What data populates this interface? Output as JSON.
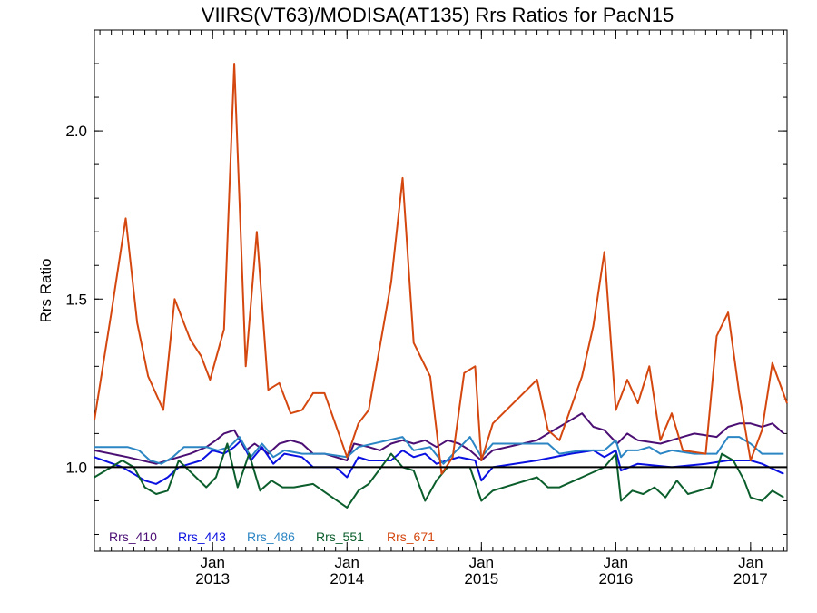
{
  "chart_data": {
    "type": "line",
    "title": "VIIRS(VT63)/MODISA(AT135)  Rrs Ratios for PacN15",
    "ylabel": "Rrs Ratio",
    "xlabel": "",
    "ylim": [
      0.75,
      2.3
    ],
    "xlim": [
      "2012-02-15",
      "2017-04-10"
    ],
    "yticks": [
      "1.0",
      "1.5",
      "2.0"
    ],
    "xticks": [
      {
        "month": "Jan",
        "year": "2013",
        "date": "2013-01-01"
      },
      {
        "month": "Jan",
        "year": "2014",
        "date": "2014-01-01"
      },
      {
        "month": "Jan",
        "year": "2015",
        "date": "2015-01-01"
      },
      {
        "month": "Jan",
        "year": "2016",
        "date": "2016-01-01"
      },
      {
        "month": "Jan",
        "year": "2017",
        "date": "2017-01-01"
      }
    ],
    "reference_line": 1.0,
    "legend_position": "bottom-left",
    "grid": false,
    "series": [
      {
        "name": "Rrs_410",
        "color": "#4b0f74",
        "points": [
          [
            "2012-02-15",
            1.05
          ],
          [
            "2012-05-15",
            1.03
          ],
          [
            "2012-08-01",
            1.01
          ],
          [
            "2012-10-01",
            1.03
          ],
          [
            "2012-11-01",
            1.04
          ],
          [
            "2012-12-15",
            1.06
          ],
          [
            "2013-01-10",
            1.08
          ],
          [
            "2013-02-01",
            1.1
          ],
          [
            "2013-03-01",
            1.11
          ],
          [
            "2013-04-01",
            1.05
          ],
          [
            "2013-04-25",
            1.07
          ],
          [
            "2013-06-01",
            1.04
          ],
          [
            "2013-07-01",
            1.07
          ],
          [
            "2013-08-01",
            1.08
          ],
          [
            "2013-09-01",
            1.07
          ],
          [
            "2013-10-01",
            1.04
          ],
          [
            "2013-11-01",
            1.04
          ],
          [
            "2014-01-01",
            1.02
          ],
          [
            "2014-01-20",
            1.07
          ],
          [
            "2014-03-01",
            1.06
          ],
          [
            "2014-04-01",
            1.05
          ],
          [
            "2014-05-01",
            1.07
          ],
          [
            "2014-06-01",
            1.08
          ],
          [
            "2014-07-01",
            1.07
          ],
          [
            "2014-08-01",
            1.08
          ],
          [
            "2014-09-01",
            1.06
          ],
          [
            "2014-10-01",
            1.08
          ],
          [
            "2014-11-01",
            1.07
          ],
          [
            "2014-12-01",
            1.05
          ],
          [
            "2015-01-01",
            1.02
          ],
          [
            "2015-02-01",
            1.05
          ],
          [
            "2015-06-01",
            1.08
          ],
          [
            "2015-07-01",
            1.1
          ],
          [
            "2015-08-01",
            1.12
          ],
          [
            "2015-10-01",
            1.16
          ],
          [
            "2015-11-01",
            1.12
          ],
          [
            "2015-12-01",
            1.11
          ],
          [
            "2016-01-05",
            1.07
          ],
          [
            "2016-02-01",
            1.1
          ],
          [
            "2016-03-01",
            1.08
          ],
          [
            "2016-05-01",
            1.07
          ],
          [
            "2016-07-01",
            1.09
          ],
          [
            "2016-08-01",
            1.1
          ],
          [
            "2016-10-01",
            1.09
          ],
          [
            "2016-11-01",
            1.12
          ],
          [
            "2016-12-01",
            1.13
          ],
          [
            "2017-01-01",
            1.13
          ],
          [
            "2017-02-01",
            1.12
          ],
          [
            "2017-03-01",
            1.13
          ],
          [
            "2017-04-01",
            1.1
          ]
        ]
      },
      {
        "name": "Rrs_443",
        "color": "#0a10e0",
        "points": [
          [
            "2012-02-15",
            1.03
          ],
          [
            "2012-05-01",
            1.0
          ],
          [
            "2012-06-01",
            0.98
          ],
          [
            "2012-07-01",
            0.96
          ],
          [
            "2012-08-01",
            0.95
          ],
          [
            "2012-09-01",
            0.97
          ],
          [
            "2012-10-01",
            1.0
          ],
          [
            "2012-12-01",
            1.02
          ],
          [
            "2013-01-01",
            1.05
          ],
          [
            "2013-02-01",
            1.04
          ],
          [
            "2013-03-01",
            1.06
          ],
          [
            "2013-03-20",
            1.08
          ],
          [
            "2013-04-15",
            1.02
          ],
          [
            "2013-05-15",
            1.06
          ],
          [
            "2013-06-15",
            1.01
          ],
          [
            "2013-07-15",
            1.04
          ],
          [
            "2013-09-01",
            1.03
          ],
          [
            "2013-10-01",
            1.0
          ],
          [
            "2013-12-01",
            1.0
          ],
          [
            "2014-01-01",
            0.97
          ],
          [
            "2014-02-01",
            1.03
          ],
          [
            "2014-03-01",
            1.02
          ],
          [
            "2014-05-01",
            1.02
          ],
          [
            "2014-06-01",
            1.05
          ],
          [
            "2014-07-01",
            1.03
          ],
          [
            "2014-08-01",
            1.04
          ],
          [
            "2014-09-01",
            1.01
          ],
          [
            "2014-10-01",
            1.02
          ],
          [
            "2014-11-01",
            1.03
          ],
          [
            "2014-12-15",
            1.02
          ],
          [
            "2015-01-01",
            0.96
          ],
          [
            "2015-02-01",
            1.0
          ],
          [
            "2015-06-01",
            1.02
          ],
          [
            "2015-09-01",
            1.04
          ],
          [
            "2015-11-01",
            1.05
          ],
          [
            "2015-12-01",
            1.03
          ],
          [
            "2016-01-01",
            1.05
          ],
          [
            "2016-01-15",
            0.99
          ],
          [
            "2016-03-01",
            1.01
          ],
          [
            "2016-06-01",
            1.0
          ],
          [
            "2016-09-01",
            1.01
          ],
          [
            "2016-11-01",
            1.02
          ],
          [
            "2017-01-01",
            1.02
          ],
          [
            "2017-02-01",
            1.01
          ],
          [
            "2017-04-01",
            0.98
          ]
        ]
      },
      {
        "name": "Rrs_486",
        "color": "#2c86c4",
        "points": [
          [
            "2012-02-15",
            1.06
          ],
          [
            "2012-05-15",
            1.06
          ],
          [
            "2012-06-15",
            1.05
          ],
          [
            "2012-07-15",
            1.02
          ],
          [
            "2012-08-15",
            1.01
          ],
          [
            "2012-09-15",
            1.03
          ],
          [
            "2012-10-15",
            1.06
          ],
          [
            "2012-12-15",
            1.06
          ],
          [
            "2013-01-15",
            1.05
          ],
          [
            "2013-02-15",
            1.06
          ],
          [
            "2013-03-15",
            1.09
          ],
          [
            "2013-04-15",
            1.03
          ],
          [
            "2013-05-15",
            1.07
          ],
          [
            "2013-06-15",
            1.03
          ],
          [
            "2013-07-15",
            1.05
          ],
          [
            "2013-09-01",
            1.04
          ],
          [
            "2013-11-01",
            1.04
          ],
          [
            "2014-01-01",
            1.03
          ],
          [
            "2014-02-01",
            1.06
          ],
          [
            "2014-06-01",
            1.09
          ],
          [
            "2014-07-01",
            1.05
          ],
          [
            "2014-08-15",
            1.06
          ],
          [
            "2014-09-20",
            1.01
          ],
          [
            "2014-12-01",
            1.09
          ],
          [
            "2015-01-01",
            1.03
          ],
          [
            "2015-02-01",
            1.07
          ],
          [
            "2015-07-01",
            1.07
          ],
          [
            "2015-08-01",
            1.04
          ],
          [
            "2015-10-01",
            1.05
          ],
          [
            "2015-12-01",
            1.05
          ],
          [
            "2016-01-01",
            1.08
          ],
          [
            "2016-01-15",
            1.03
          ],
          [
            "2016-02-01",
            1.05
          ],
          [
            "2016-03-01",
            1.05
          ],
          [
            "2016-04-01",
            1.06
          ],
          [
            "2016-05-01",
            1.04
          ],
          [
            "2016-06-01",
            1.05
          ],
          [
            "2016-08-01",
            1.04
          ],
          [
            "2016-10-01",
            1.04
          ],
          [
            "2016-11-01",
            1.09
          ],
          [
            "2016-12-01",
            1.09
          ],
          [
            "2017-01-01",
            1.07
          ],
          [
            "2017-02-01",
            1.04
          ],
          [
            "2017-04-01",
            1.04
          ]
        ]
      },
      {
        "name": "Rrs_551",
        "color": "#0b5e2c",
        "points": [
          [
            "2012-02-15",
            0.97
          ],
          [
            "2012-05-01",
            1.02
          ],
          [
            "2012-06-01",
            1.0
          ],
          [
            "2012-07-01",
            0.94
          ],
          [
            "2012-08-01",
            0.92
          ],
          [
            "2012-09-01",
            0.93
          ],
          [
            "2012-10-01",
            1.02
          ],
          [
            "2012-12-15",
            0.94
          ],
          [
            "2013-01-10",
            0.97
          ],
          [
            "2013-02-10",
            1.07
          ],
          [
            "2013-03-10",
            0.94
          ],
          [
            "2013-04-10",
            1.04
          ],
          [
            "2013-05-10",
            0.93
          ],
          [
            "2013-06-10",
            0.96
          ],
          [
            "2013-07-10",
            0.94
          ],
          [
            "2013-08-10",
            0.94
          ],
          [
            "2013-10-01",
            0.95
          ],
          [
            "2014-01-01",
            0.88
          ],
          [
            "2014-02-01",
            0.93
          ],
          [
            "2014-03-01",
            0.95
          ],
          [
            "2014-05-01",
            1.04
          ],
          [
            "2014-06-01",
            1.0
          ],
          [
            "2014-07-01",
            0.99
          ],
          [
            "2014-08-01",
            0.9
          ],
          [
            "2014-09-01",
            0.96
          ],
          [
            "2014-10-01",
            1.0
          ],
          [
            "2014-12-01",
            1.0
          ],
          [
            "2015-01-01",
            0.9
          ],
          [
            "2015-02-01",
            0.93
          ],
          [
            "2015-06-01",
            0.97
          ],
          [
            "2015-07-01",
            0.94
          ],
          [
            "2015-08-01",
            0.94
          ],
          [
            "2015-10-01",
            0.97
          ],
          [
            "2015-12-01",
            1.0
          ],
          [
            "2016-01-01",
            1.04
          ],
          [
            "2016-01-15",
            0.9
          ],
          [
            "2016-02-15",
            0.93
          ],
          [
            "2016-03-15",
            0.92
          ],
          [
            "2016-04-15",
            0.94
          ],
          [
            "2016-05-15",
            0.91
          ],
          [
            "2016-06-15",
            0.96
          ],
          [
            "2016-07-15",
            0.92
          ],
          [
            "2016-08-15",
            0.93
          ],
          [
            "2016-09-15",
            0.94
          ],
          [
            "2016-10-15",
            1.04
          ],
          [
            "2016-11-15",
            1.02
          ],
          [
            "2016-12-15",
            0.96
          ],
          [
            "2017-01-01",
            0.91
          ],
          [
            "2017-02-01",
            0.9
          ],
          [
            "2017-03-01",
            0.93
          ],
          [
            "2017-04-01",
            0.91
          ]
        ]
      },
      {
        "name": "Rrs_671",
        "color": "#d4470f",
        "points": [
          [
            "2012-02-15",
            1.14
          ],
          [
            "2012-04-01",
            1.46
          ],
          [
            "2012-05-10",
            1.74
          ],
          [
            "2012-06-10",
            1.43
          ],
          [
            "2012-07-10",
            1.27
          ],
          [
            "2012-08-20",
            1.17
          ],
          [
            "2012-09-20",
            1.5
          ],
          [
            "2012-11-01",
            1.38
          ],
          [
            "2012-12-01",
            1.33
          ],
          [
            "2012-12-25",
            1.26
          ],
          [
            "2013-02-01",
            1.41
          ],
          [
            "2013-03-01",
            2.2
          ],
          [
            "2013-04-01",
            1.3
          ],
          [
            "2013-05-01",
            1.7
          ],
          [
            "2013-06-01",
            1.23
          ],
          [
            "2013-07-01",
            1.25
          ],
          [
            "2013-08-01",
            1.16
          ],
          [
            "2013-09-01",
            1.17
          ],
          [
            "2013-10-01",
            1.22
          ],
          [
            "2013-11-01",
            1.22
          ],
          [
            "2014-01-01",
            1.03
          ],
          [
            "2014-02-01",
            1.13
          ],
          [
            "2014-03-01",
            1.17
          ],
          [
            "2014-05-01",
            1.55
          ],
          [
            "2014-06-01",
            1.86
          ],
          [
            "2014-07-01",
            1.37
          ],
          [
            "2014-08-15",
            1.27
          ],
          [
            "2014-09-15",
            0.98
          ],
          [
            "2014-10-15",
            1.03
          ],
          [
            "2014-11-15",
            1.28
          ],
          [
            "2014-12-15",
            1.3
          ],
          [
            "2015-01-01",
            1.02
          ],
          [
            "2015-02-01",
            1.13
          ],
          [
            "2015-06-01",
            1.26
          ],
          [
            "2015-07-01",
            1.11
          ],
          [
            "2015-08-01",
            1.08
          ],
          [
            "2015-10-01",
            1.27
          ],
          [
            "2015-11-01",
            1.42
          ],
          [
            "2015-12-01",
            1.64
          ],
          [
            "2016-01-01",
            1.17
          ],
          [
            "2016-02-01",
            1.26
          ],
          [
            "2016-03-01",
            1.19
          ],
          [
            "2016-04-01",
            1.3
          ],
          [
            "2016-05-01",
            1.08
          ],
          [
            "2016-06-01",
            1.16
          ],
          [
            "2016-07-01",
            1.05
          ],
          [
            "2016-09-01",
            1.04
          ],
          [
            "2016-10-01",
            1.39
          ],
          [
            "2016-11-01",
            1.46
          ],
          [
            "2016-12-01",
            1.22
          ],
          [
            "2017-01-01",
            1.02
          ],
          [
            "2017-02-01",
            1.11
          ],
          [
            "2017-03-01",
            1.31
          ],
          [
            "2017-04-10",
            1.19
          ]
        ]
      }
    ]
  }
}
